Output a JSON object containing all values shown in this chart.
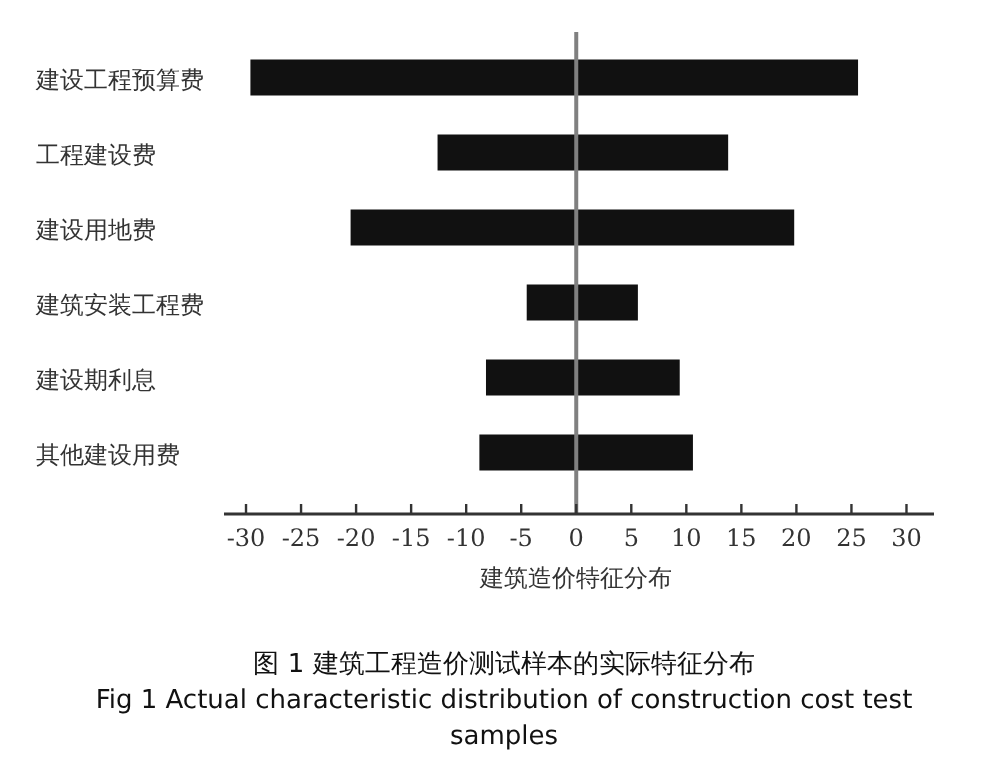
{
  "chart_data": {
    "type": "bar",
    "orientation": "horizontal",
    "categories": [
      "建设工程预算费",
      "工程建设费",
      "建设用地费",
      "建筑安装工程费",
      "建设期利息",
      "其他建设用费"
    ],
    "base": [
      -29.6,
      -12.6,
      -20.5,
      -4.5,
      -8.2,
      -8.8
    ],
    "values": [
      55.2,
      26.4,
      40.3,
      10.1,
      17.6,
      19.4
    ],
    "color": "#111111",
    "xlim": [
      -32,
      32.5
    ],
    "xticks": [
      -30,
      -25,
      -20,
      -15,
      -10,
      -5,
      0,
      5,
      10,
      15,
      20,
      25,
      30
    ],
    "xlabel": "建筑造价特征分布",
    "ref_lines": [
      {
        "axis": "x",
        "value": 0,
        "color": "#808080"
      }
    ],
    "annotations": [
      "图 1 建筑工程造价测试样本的实际特征分布",
      "Fig 1 Actual characteristic distribution of construction cost test samples"
    ]
  }
}
